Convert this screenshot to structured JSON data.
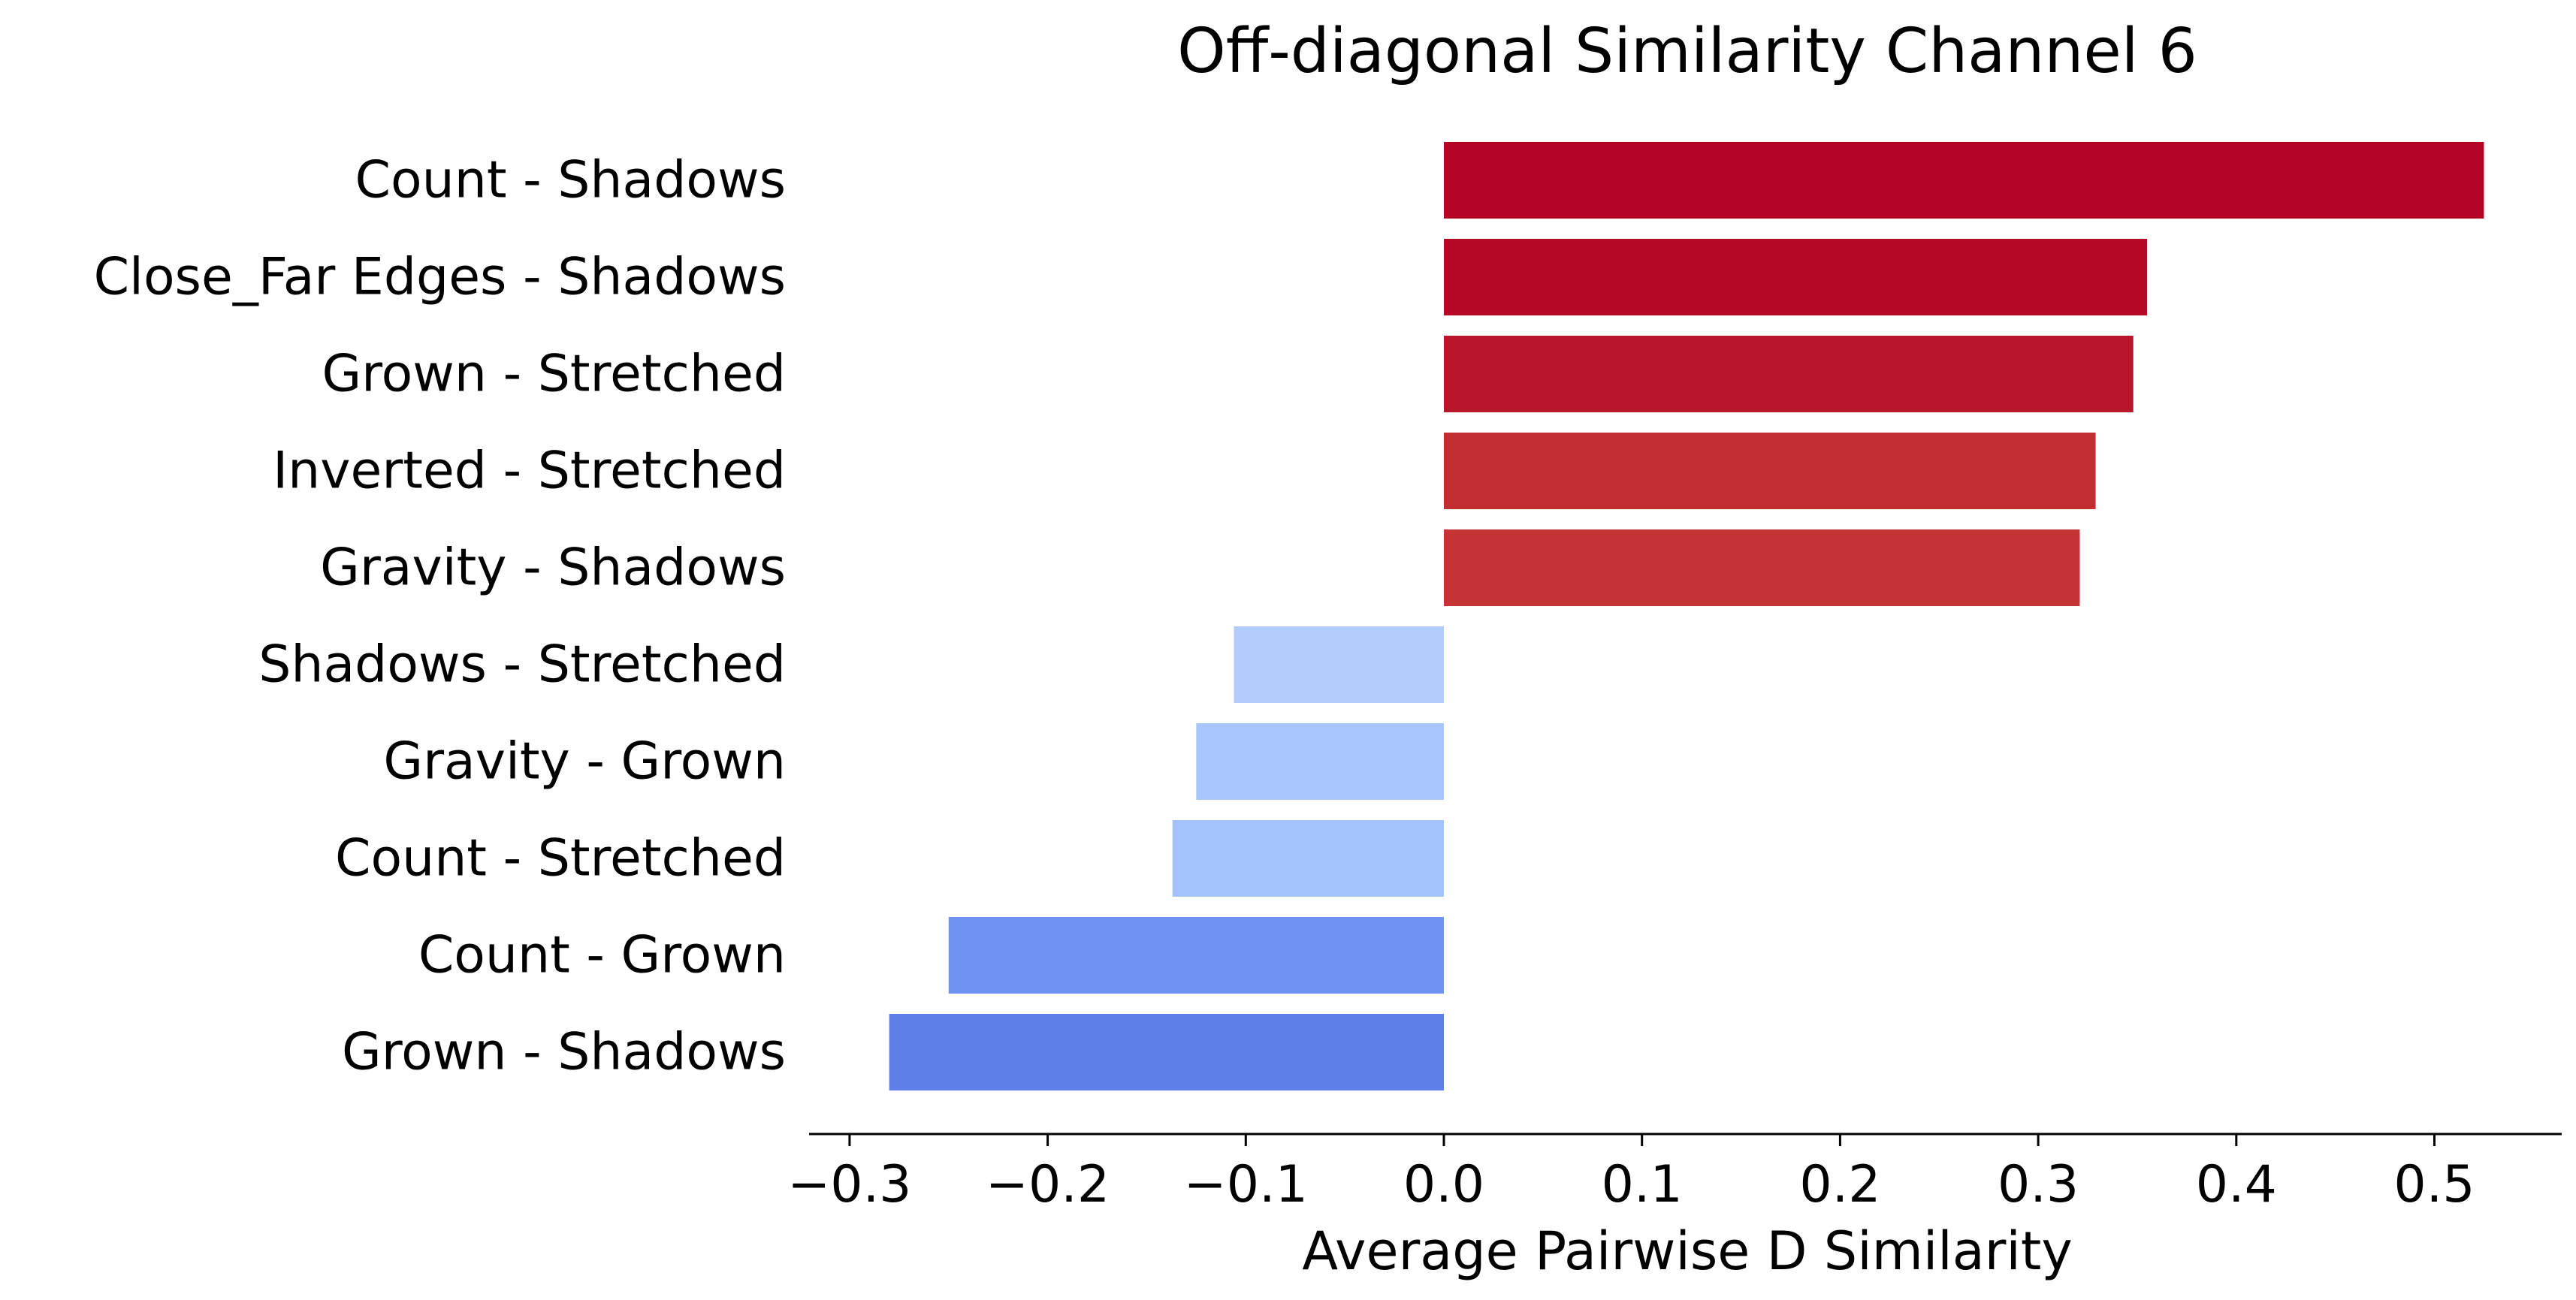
{
  "chart_data": {
    "type": "bar",
    "orientation": "horizontal",
    "title": "Off-diagonal Similarity Channel 6",
    "xlabel": "Average Pairwise D Similarity",
    "ylabel": "",
    "xlim": [
      -0.32,
      0.565
    ],
    "grid": false,
    "xticks": [
      -0.3,
      -0.2,
      -0.1,
      0.0,
      0.1,
      0.2,
      0.3,
      0.4,
      0.5
    ],
    "xtick_labels": [
      "−0.3",
      "−0.2",
      "−0.1",
      "0.0",
      "0.1",
      "0.2",
      "0.3",
      "0.4",
      "0.5"
    ],
    "categories": [
      "Count - Shadows",
      "Close_Far Edges - Shadows",
      "Grown - Stretched",
      "Inverted - Stretched",
      "Gravity - Shadows",
      "Shadows - Stretched",
      "Gravity - Grown",
      "Count - Stretched",
      "Count - Grown",
      "Grown - Shadows"
    ],
    "values": [
      0.525,
      0.355,
      0.348,
      0.329,
      0.321,
      -0.106,
      -0.125,
      -0.137,
      -0.25,
      -0.28
    ],
    "colors": [
      "#b40426",
      "#b50927",
      "#b9152b",
      "#c32e31",
      "#c53334",
      "#b3cdfb",
      "#a9c6fd",
      "#a3c2fe",
      "#6f92f3",
      "#5f7fe8"
    ]
  }
}
